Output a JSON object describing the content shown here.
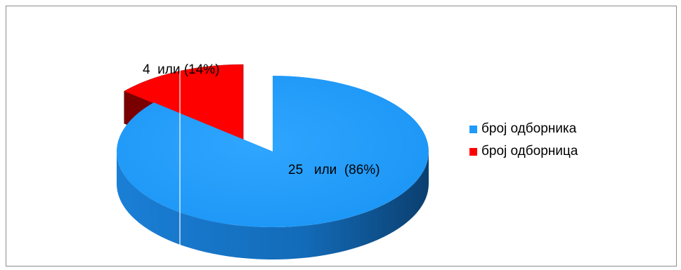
{
  "chart_data": {
    "type": "pie",
    "title": "",
    "categories": [
      "број одборника",
      "број одборница"
    ],
    "values": [
      25,
      4
    ],
    "percentages": [
      86,
      14
    ],
    "data_labels": [
      "25   или  (86%)",
      "4  или (14%)"
    ],
    "colors": [
      "#1e9bfb",
      "#ff0000"
    ],
    "side_colors": [
      "#0f5a9c",
      "#7a0000"
    ],
    "exploded_slice": "број одборница",
    "style": "3d",
    "legend_position": "right"
  }
}
